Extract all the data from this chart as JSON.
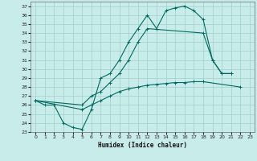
{
  "xlabel": "Humidex (Indice chaleur)",
  "xlim": [
    -0.5,
    23.5
  ],
  "ylim": [
    23,
    37.5
  ],
  "yticks": [
    23,
    24,
    25,
    26,
    27,
    28,
    29,
    30,
    31,
    32,
    33,
    34,
    35,
    36,
    37
  ],
  "xticks": [
    0,
    1,
    2,
    3,
    4,
    5,
    6,
    7,
    8,
    9,
    10,
    11,
    12,
    13,
    14,
    15,
    16,
    17,
    18,
    19,
    20,
    21,
    22,
    23
  ],
  "bg_color": "#c8ece9",
  "line_color": "#006a60",
  "grid_color": "#a0d0cc",
  "line1_x": [
    0,
    1,
    2,
    3,
    4,
    5,
    6,
    7,
    8,
    9,
    10,
    11,
    12,
    13,
    14,
    15,
    16,
    17,
    18,
    19,
    20,
    21
  ],
  "line1_y": [
    26.5,
    26.0,
    26.0,
    24.0,
    23.5,
    23.3,
    25.5,
    29.0,
    29.5,
    31.0,
    33.0,
    34.5,
    36.0,
    34.5,
    36.5,
    36.8,
    37.0,
    36.5,
    35.5,
    31.0,
    29.5,
    29.5
  ],
  "line2_x": [
    0,
    5,
    6,
    7,
    8,
    9,
    10,
    11,
    12,
    18,
    19,
    20,
    21
  ],
  "line2_y": [
    26.5,
    26.0,
    27.0,
    27.5,
    28.5,
    29.5,
    31.0,
    33.0,
    34.5,
    34.0,
    31.0,
    29.5,
    29.5
  ],
  "line3_x": [
    0,
    5,
    6,
    7,
    8,
    9,
    10,
    11,
    12,
    13,
    14,
    15,
    16,
    17,
    18,
    22
  ],
  "line3_y": [
    26.5,
    25.5,
    26.0,
    26.5,
    27.0,
    27.5,
    27.8,
    28.0,
    28.2,
    28.3,
    28.4,
    28.5,
    28.5,
    28.6,
    28.6,
    28.0
  ]
}
